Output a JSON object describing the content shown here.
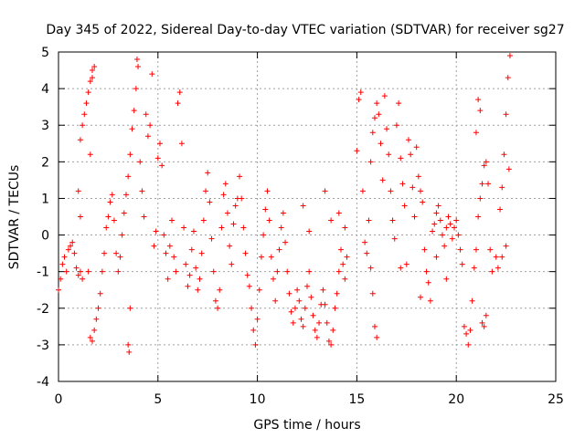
{
  "chart_data": {
    "type": "scatter",
    "title": "Day 345 of 2022, Sidereal Day-to-day VTEC variation (SDTVAR) for receiver sg27",
    "xlabel": "GPS time / hours",
    "ylabel": "SDTVAR / TECUs",
    "xlim": [
      0,
      25
    ],
    "ylim": [
      -4,
      5
    ],
    "xticks": [
      0,
      5,
      10,
      15,
      20,
      25
    ],
    "yticks": [
      -4,
      -3,
      -2,
      -1,
      0,
      1,
      2,
      3,
      4,
      5
    ],
    "grid": true,
    "marker": "+",
    "color": "#ff0000",
    "series": [
      {
        "name": "SDTVAR",
        "points": [
          [
            0.0,
            -1.5
          ],
          [
            0.1,
            -1.2
          ],
          [
            0.2,
            -0.8
          ],
          [
            0.3,
            -0.6
          ],
          [
            0.4,
            -1.0
          ],
          [
            0.5,
            -0.4
          ],
          [
            0.6,
            -0.3
          ],
          [
            0.7,
            -0.2
          ],
          [
            0.8,
            -0.5
          ],
          [
            0.9,
            -0.9
          ],
          [
            1.0,
            -1.1
          ],
          [
            1.1,
            -1.0
          ],
          [
            1.2,
            -1.2
          ],
          [
            1.1,
            0.5
          ],
          [
            1.0,
            1.2
          ],
          [
            1.1,
            2.6
          ],
          [
            1.2,
            3.0
          ],
          [
            1.3,
            3.3
          ],
          [
            1.4,
            3.6
          ],
          [
            1.5,
            3.9
          ],
          [
            1.6,
            4.2
          ],
          [
            1.7,
            4.5
          ],
          [
            1.8,
            4.6
          ],
          [
            1.7,
            4.3
          ],
          [
            1.6,
            2.2
          ],
          [
            1.5,
            -1.0
          ],
          [
            1.6,
            -2.8
          ],
          [
            1.7,
            -2.9
          ],
          [
            1.8,
            -2.6
          ],
          [
            1.9,
            -2.3
          ],
          [
            2.0,
            -2.0
          ],
          [
            2.1,
            -1.6
          ],
          [
            2.2,
            -1.0
          ],
          [
            2.3,
            -0.5
          ],
          [
            2.4,
            0.2
          ],
          [
            2.5,
            0.5
          ],
          [
            2.6,
            0.9
          ],
          [
            2.7,
            1.1
          ],
          [
            2.8,
            0.4
          ],
          [
            2.9,
            -0.5
          ],
          [
            3.0,
            -1.0
          ],
          [
            3.1,
            -0.6
          ],
          [
            3.2,
            0.0
          ],
          [
            3.3,
            0.6
          ],
          [
            3.4,
            1.1
          ],
          [
            3.5,
            1.6
          ],
          [
            3.6,
            2.2
          ],
          [
            3.7,
            2.9
          ],
          [
            3.8,
            3.4
          ],
          [
            3.9,
            4.0
          ],
          [
            4.0,
            4.6
          ],
          [
            3.95,
            4.8
          ],
          [
            3.6,
            -2.0
          ],
          [
            3.5,
            -3.0
          ],
          [
            3.55,
            -3.2
          ],
          [
            4.1,
            2.0
          ],
          [
            4.2,
            1.2
          ],
          [
            4.3,
            0.5
          ],
          [
            4.4,
            3.3
          ],
          [
            4.5,
            2.7
          ],
          [
            4.6,
            3.0
          ],
          [
            4.7,
            4.4
          ],
          [
            4.8,
            -0.3
          ],
          [
            4.9,
            0.1
          ],
          [
            5.0,
            2.1
          ],
          [
            5.1,
            2.5
          ],
          [
            5.2,
            1.9
          ],
          [
            5.3,
            0.0
          ],
          [
            5.4,
            -0.5
          ],
          [
            5.5,
            -1.2
          ],
          [
            5.6,
            -0.3
          ],
          [
            5.7,
            0.4
          ],
          [
            5.8,
            -0.6
          ],
          [
            5.9,
            -1.0
          ],
          [
            6.0,
            3.6
          ],
          [
            6.1,
            3.9
          ],
          [
            6.2,
            2.5
          ],
          [
            6.3,
            0.2
          ],
          [
            6.4,
            -0.8
          ],
          [
            6.5,
            -1.4
          ],
          [
            6.6,
            -1.1
          ],
          [
            6.7,
            -0.4
          ],
          [
            6.8,
            0.1
          ],
          [
            6.9,
            -0.9
          ],
          [
            7.0,
            -1.5
          ],
          [
            7.1,
            -1.2
          ],
          [
            7.2,
            -0.5
          ],
          [
            7.3,
            0.4
          ],
          [
            7.4,
            1.2
          ],
          [
            7.5,
            1.7
          ],
          [
            7.6,
            0.9
          ],
          [
            7.7,
            -0.1
          ],
          [
            7.8,
            -1.0
          ],
          [
            7.9,
            -1.8
          ],
          [
            8.0,
            -2.0
          ],
          [
            8.1,
            -1.5
          ],
          [
            8.2,
            0.2
          ],
          [
            8.3,
            1.1
          ],
          [
            8.4,
            1.4
          ],
          [
            8.5,
            0.6
          ],
          [
            8.6,
            -0.3
          ],
          [
            8.7,
            -0.8
          ],
          [
            8.8,
            0.3
          ],
          [
            8.9,
            0.8
          ],
          [
            9.0,
            1.0
          ],
          [
            9.1,
            1.6
          ],
          [
            9.2,
            1.0
          ],
          [
            9.3,
            0.2
          ],
          [
            9.4,
            -0.5
          ],
          [
            9.5,
            -1.1
          ],
          [
            9.6,
            -1.4
          ],
          [
            9.7,
            -2.0
          ],
          [
            9.8,
            -2.6
          ],
          [
            9.9,
            -3.0
          ],
          [
            10.0,
            -2.3
          ],
          [
            10.1,
            -1.5
          ],
          [
            10.2,
            -0.6
          ],
          [
            10.3,
            0.0
          ],
          [
            10.4,
            0.7
          ],
          [
            10.5,
            1.2
          ],
          [
            10.6,
            0.4
          ],
          [
            10.7,
            -0.6
          ],
          [
            10.8,
            -1.2
          ],
          [
            10.9,
            -1.8
          ],
          [
            11.0,
            -1.0
          ],
          [
            11.1,
            -0.4
          ],
          [
            11.2,
            0.2
          ],
          [
            11.3,
            0.6
          ],
          [
            11.4,
            -0.2
          ],
          [
            11.5,
            -1.0
          ],
          [
            11.6,
            -1.6
          ],
          [
            11.7,
            -2.1
          ],
          [
            11.8,
            -2.4
          ],
          [
            11.9,
            -2.0
          ],
          [
            12.0,
            -1.5
          ],
          [
            12.1,
            -1.8
          ],
          [
            12.2,
            -2.3
          ],
          [
            12.3,
            -2.5
          ],
          [
            12.4,
            -2.0
          ],
          [
            12.5,
            -1.4
          ],
          [
            12.6,
            -1.0
          ],
          [
            12.7,
            -1.7
          ],
          [
            12.8,
            -2.2
          ],
          [
            12.9,
            -2.6
          ],
          [
            13.0,
            -2.8
          ],
          [
            13.1,
            -2.4
          ],
          [
            13.2,
            -1.9
          ],
          [
            13.3,
            -1.5
          ],
          [
            13.4,
            -1.9
          ],
          [
            13.5,
            -2.4
          ],
          [
            13.6,
            -2.9
          ],
          [
            13.7,
            -3.0
          ],
          [
            13.8,
            -2.6
          ],
          [
            13.9,
            -2.0
          ],
          [
            14.0,
            -1.6
          ],
          [
            14.1,
            -1.0
          ],
          [
            14.2,
            -0.4
          ],
          [
            14.3,
            -0.8
          ],
          [
            14.4,
            -1.2
          ],
          [
            14.5,
            -0.6
          ],
          [
            12.3,
            0.8
          ],
          [
            12.6,
            0.1
          ],
          [
            13.4,
            1.2
          ],
          [
            13.7,
            0.4
          ],
          [
            14.1,
            0.6
          ],
          [
            14.4,
            0.2
          ],
          [
            15.0,
            2.3
          ],
          [
            15.1,
            3.7
          ],
          [
            15.2,
            3.9
          ],
          [
            15.3,
            1.2
          ],
          [
            15.4,
            -0.2
          ],
          [
            15.5,
            -0.5
          ],
          [
            15.6,
            0.4
          ],
          [
            15.7,
            2.0
          ],
          [
            15.8,
            2.8
          ],
          [
            15.9,
            3.2
          ],
          [
            16.0,
            3.6
          ],
          [
            16.1,
            3.3
          ],
          [
            16.2,
            2.5
          ],
          [
            16.3,
            1.5
          ],
          [
            15.8,
            -1.6
          ],
          [
            15.9,
            -2.5
          ],
          [
            16.0,
            -2.8
          ],
          [
            15.7,
            -0.9
          ],
          [
            16.4,
            3.8
          ],
          [
            16.5,
            2.9
          ],
          [
            16.6,
            2.2
          ],
          [
            16.7,
            1.2
          ],
          [
            16.8,
            0.4
          ],
          [
            16.9,
            -0.1
          ],
          [
            17.0,
            3.0
          ],
          [
            17.1,
            3.6
          ],
          [
            17.2,
            2.1
          ],
          [
            17.3,
            1.4
          ],
          [
            17.4,
            0.8
          ],
          [
            17.5,
            -0.8
          ],
          [
            17.6,
            2.6
          ],
          [
            17.7,
            2.2
          ],
          [
            17.8,
            1.3
          ],
          [
            17.9,
            0.5
          ],
          [
            18.0,
            2.4
          ],
          [
            18.1,
            1.6
          ],
          [
            18.2,
            1.2
          ],
          [
            18.3,
            0.9
          ],
          [
            18.4,
            -0.4
          ],
          [
            18.5,
            -1.0
          ],
          [
            18.6,
            -1.3
          ],
          [
            18.7,
            -1.8
          ],
          [
            18.8,
            0.1
          ],
          [
            18.9,
            0.3
          ],
          [
            19.0,
            0.6
          ],
          [
            19.1,
            0.8
          ],
          [
            19.2,
            0.4
          ],
          [
            19.3,
            0.0
          ],
          [
            19.4,
            -0.3
          ],
          [
            19.5,
            0.2
          ],
          [
            19.6,
            0.5
          ],
          [
            19.7,
            0.3
          ],
          [
            19.8,
            -0.1
          ],
          [
            19.9,
            0.2
          ],
          [
            20.0,
            0.4
          ],
          [
            20.1,
            0.0
          ],
          [
            20.2,
            -0.4
          ],
          [
            20.3,
            -0.8
          ],
          [
            20.4,
            -2.5
          ],
          [
            20.5,
            -2.7
          ],
          [
            20.6,
            -3.0
          ],
          [
            20.7,
            -2.6
          ],
          [
            20.8,
            -1.8
          ],
          [
            20.9,
            -0.9
          ],
          [
            21.0,
            -0.4
          ],
          [
            21.1,
            0.5
          ],
          [
            21.2,
            1.0
          ],
          [
            21.3,
            1.4
          ],
          [
            21.4,
            1.9
          ],
          [
            21.5,
            2.0
          ],
          [
            21.6,
            1.4
          ],
          [
            21.7,
            -0.4
          ],
          [
            21.8,
            -1.0
          ],
          [
            21.3,
            -2.4
          ],
          [
            21.4,
            -2.5
          ],
          [
            21.5,
            -2.2
          ],
          [
            21.1,
            3.7
          ],
          [
            21.2,
            3.4
          ],
          [
            21.0,
            2.8
          ],
          [
            22.0,
            -0.6
          ],
          [
            22.1,
            -0.9
          ],
          [
            22.2,
            0.7
          ],
          [
            22.3,
            1.3
          ],
          [
            22.4,
            2.2
          ],
          [
            22.5,
            3.3
          ],
          [
            22.6,
            4.3
          ],
          [
            22.7,
            4.9
          ],
          [
            22.65,
            1.8
          ],
          [
            22.5,
            -0.3
          ],
          [
            22.3,
            -0.6
          ],
          [
            19.5,
            -1.2
          ],
          [
            19.0,
            -0.6
          ],
          [
            18.2,
            -1.7
          ],
          [
            17.2,
            -0.9
          ]
        ]
      }
    ]
  }
}
